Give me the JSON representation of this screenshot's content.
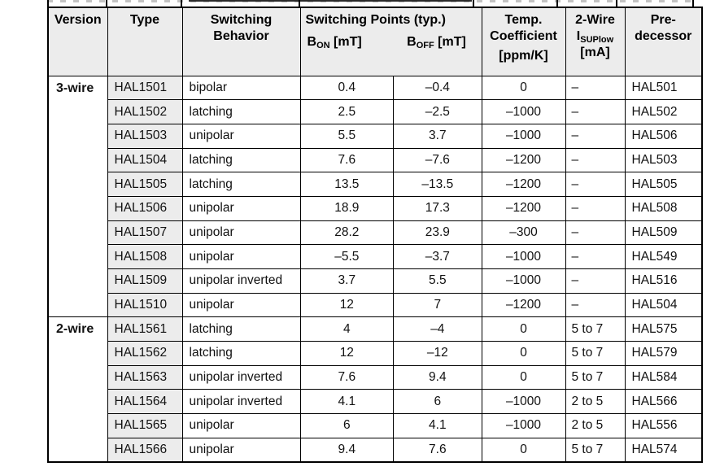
{
  "colors": {
    "border": "#000000",
    "header_bg": "#ececec",
    "type_column_bg": "#ececec",
    "row_bg": "#ffffff",
    "text": "#111111"
  },
  "table": {
    "header": {
      "version": "Version",
      "type": "Type",
      "behavior": "Switching Behavior",
      "switching_points": "Switching Points (typ.)",
      "b_on": {
        "symbol": "B",
        "sub": "ON",
        "unit": " [mT]"
      },
      "b_off": {
        "symbol": "B",
        "sub": "OFF",
        "unit": " [mT]"
      },
      "temp_coefficient": {
        "line1": "Temp.",
        "line2": "Coefficient",
        "line3": "[ppm/K]"
      },
      "two_wire": {
        "line1": "2-Wire",
        "symbol": "I",
        "sub": "SUPlow",
        "unit": "[mA]"
      },
      "predecessor": {
        "line1": "Pre-",
        "line2": "decessor"
      }
    },
    "sections": [
      {
        "version": "3-wire",
        "rows": [
          {
            "type": "HAL1501",
            "behavior": "bipolar",
            "b_on": "0.4",
            "b_off": "–0.4",
            "temp_coeff": "0",
            "i_sup": "–",
            "predecessor": "HAL501"
          },
          {
            "type": "HAL1502",
            "behavior": "latching",
            "b_on": "2.5",
            "b_off": "–2.5",
            "temp_coeff": "–1000",
            "i_sup": "–",
            "predecessor": "HAL502"
          },
          {
            "type": "HAL1503",
            "behavior": "unipolar",
            "b_on": "5.5",
            "b_off": "3.7",
            "temp_coeff": "–1000",
            "i_sup": "–",
            "predecessor": "HAL506"
          },
          {
            "type": "HAL1504",
            "behavior": "latching",
            "b_on": "7.6",
            "b_off": "–7.6",
            "temp_coeff": "–1200",
            "i_sup": "–",
            "predecessor": "HAL503"
          },
          {
            "type": "HAL1505",
            "behavior": "latching",
            "b_on": "13.5",
            "b_off": "–13.5",
            "temp_coeff": "–1200",
            "i_sup": "–",
            "predecessor": "HAL505"
          },
          {
            "type": "HAL1506",
            "behavior": "unipolar",
            "b_on": "18.9",
            "b_off": "17.3",
            "temp_coeff": "–1200",
            "i_sup": "–",
            "predecessor": "HAL508"
          },
          {
            "type": "HAL1507",
            "behavior": "unipolar",
            "b_on": "28.2",
            "b_off": "23.9",
            "temp_coeff": "–300",
            "i_sup": "–",
            "predecessor": "HAL509"
          },
          {
            "type": "HAL1508",
            "behavior": "unipolar",
            "b_on": "–5.5",
            "b_off": "–3.7",
            "temp_coeff": "–1000",
            "i_sup": "–",
            "predecessor": "HAL549"
          },
          {
            "type": "HAL1509",
            "behavior": "unipolar inverted",
            "b_on": "3.7",
            "b_off": "5.5",
            "temp_coeff": "–1000",
            "i_sup": "–",
            "predecessor": "HAL516"
          },
          {
            "type": "HAL1510",
            "behavior": "unipolar",
            "b_on": "12",
            "b_off": "7",
            "temp_coeff": "–1200",
            "i_sup": "–",
            "predecessor": "HAL504"
          }
        ]
      },
      {
        "version": "2-wire",
        "rows": [
          {
            "type": "HAL1561",
            "behavior": "latching",
            "b_on": "4",
            "b_off": "–4",
            "temp_coeff": "0",
            "i_sup": "5 to 7",
            "predecessor": "HAL575"
          },
          {
            "type": "HAL1562",
            "behavior": "latching",
            "b_on": "12",
            "b_off": "–12",
            "temp_coeff": "0",
            "i_sup": "5 to 7",
            "predecessor": "HAL579"
          },
          {
            "type": "HAL1563",
            "behavior": "unipolar inverted",
            "b_on": "7.6",
            "b_off": "9.4",
            "temp_coeff": "0",
            "i_sup": "5 to 7",
            "predecessor": "HAL584"
          },
          {
            "type": "HAL1564",
            "behavior": "unipolar inverted",
            "b_on": "4.1",
            "b_off": "6",
            "temp_coeff": "–1000",
            "i_sup": "2 to 5",
            "predecessor": "HAL566"
          },
          {
            "type": "HAL1565",
            "behavior": "unipolar",
            "b_on": "6",
            "b_off": "4.1",
            "temp_coeff": "–1000",
            "i_sup": "2 to 5",
            "predecessor": "HAL556"
          },
          {
            "type": "HAL1566",
            "behavior": "unipolar",
            "b_on": "9.4",
            "b_off": "7.6",
            "temp_coeff": "0",
            "i_sup": "5 to 7",
            "predecessor": "HAL574"
          }
        ]
      }
    ]
  }
}
